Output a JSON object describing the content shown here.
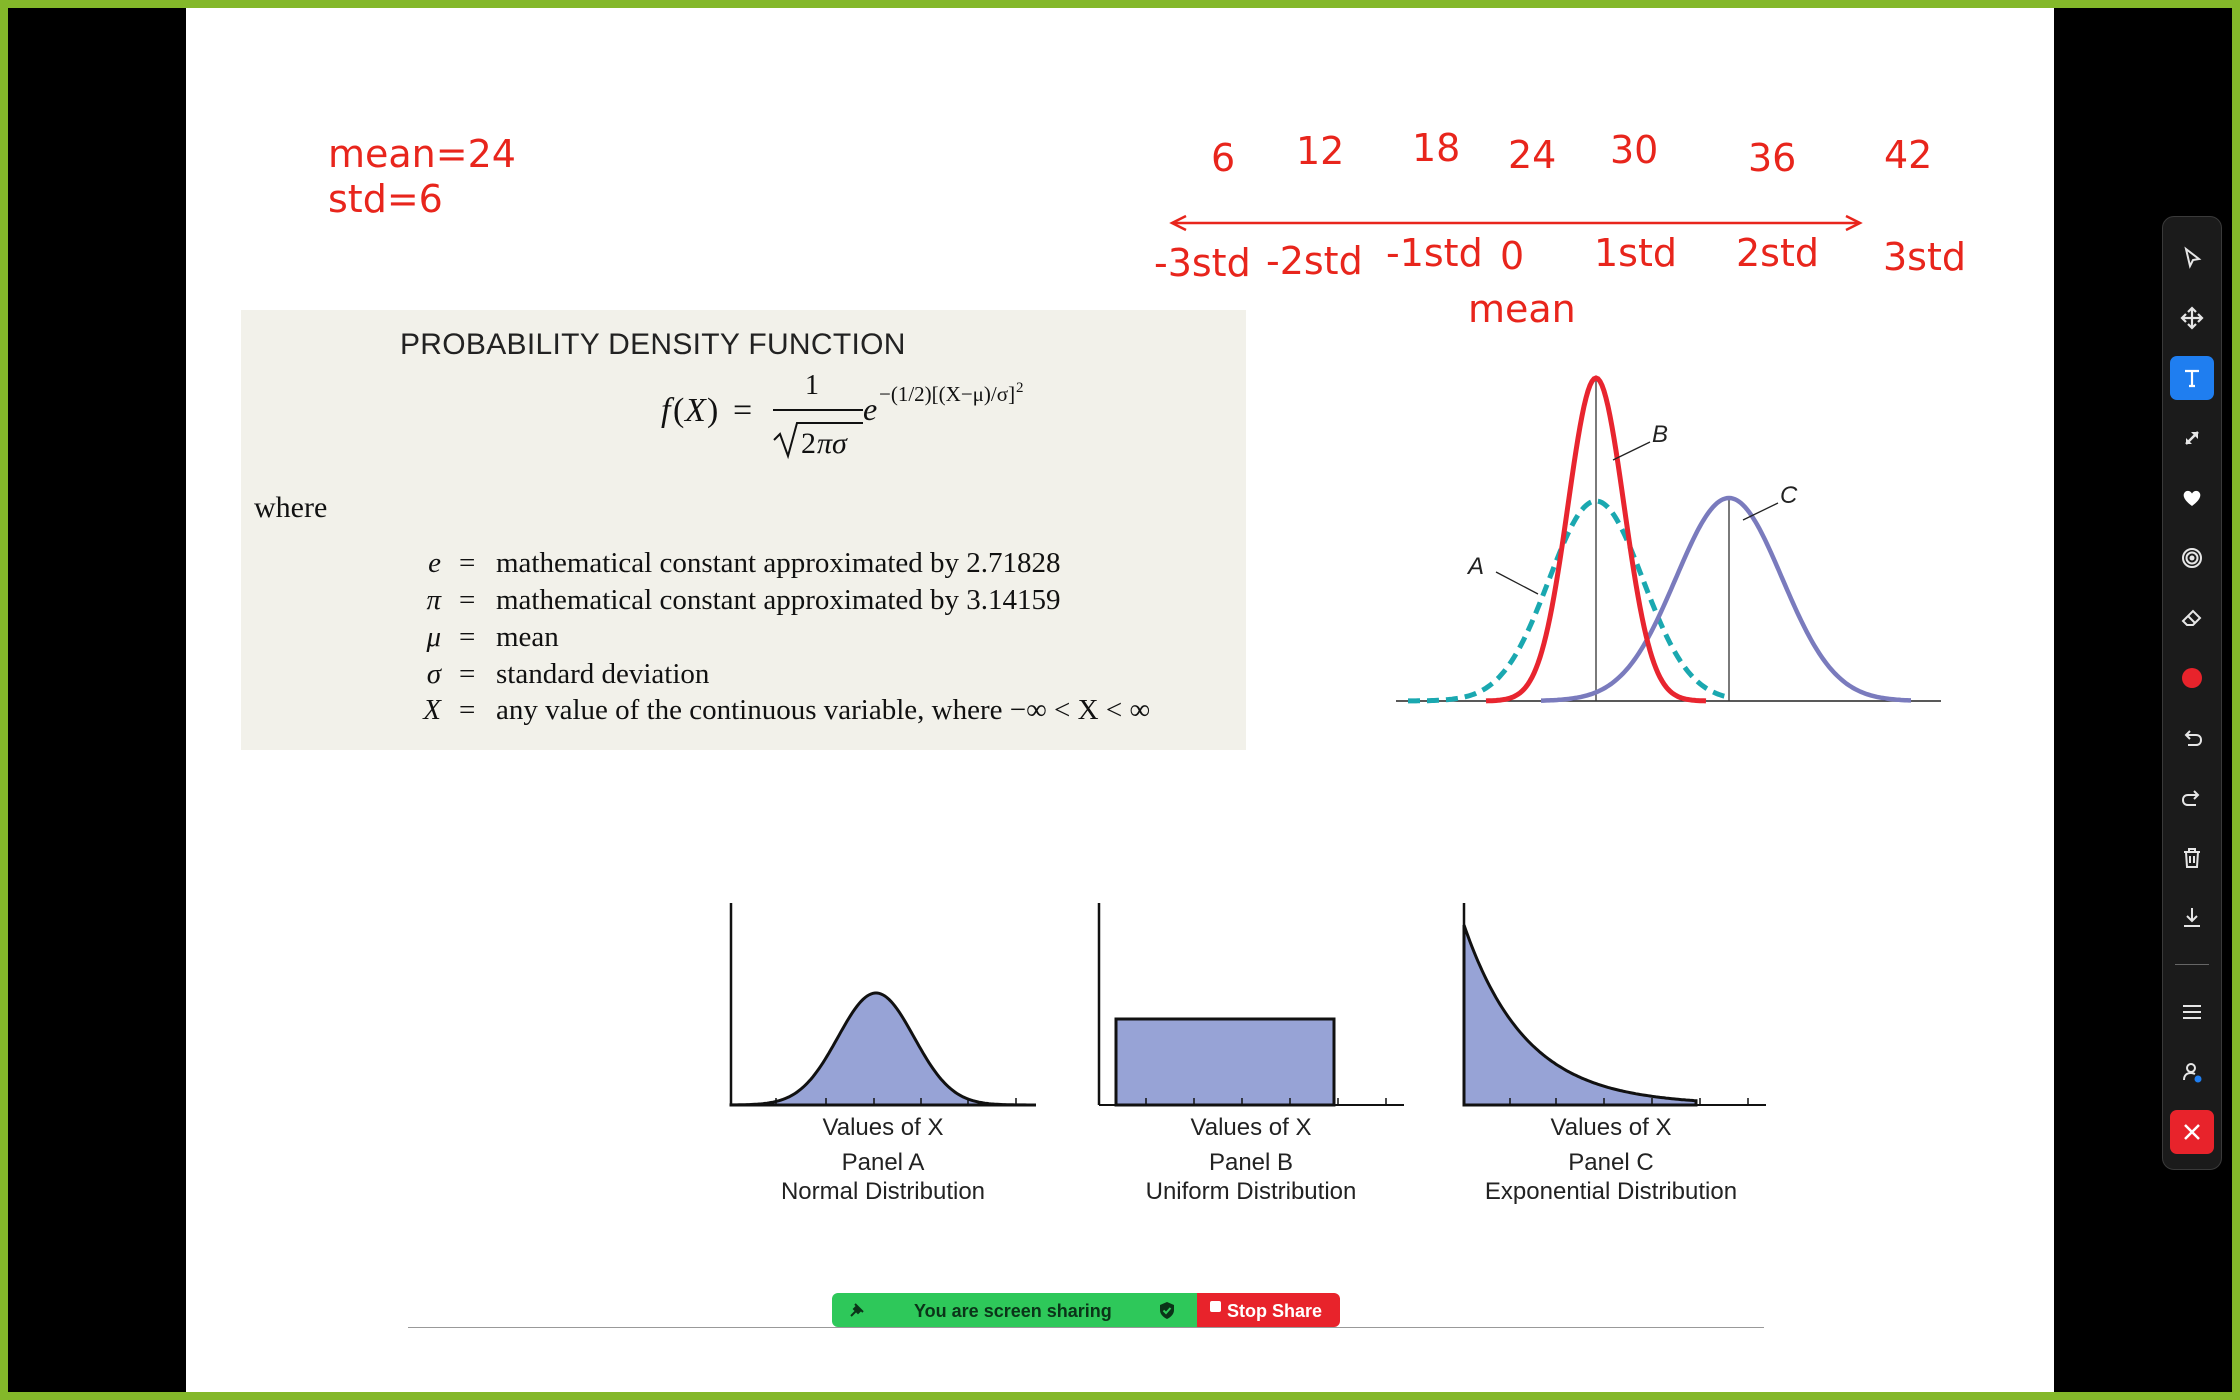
{
  "annotations": {
    "mean_label": "mean=24",
    "std_label": "std=6",
    "values": [
      "6",
      "12",
      "18",
      "24",
      "30",
      "36",
      "42"
    ],
    "std_labels": [
      "-3std",
      "-2std",
      "-1std",
      "0",
      "1std",
      "2std",
      "3std"
    ],
    "mean_word": "mean",
    "color": "#e8251c"
  },
  "pdf_box": {
    "title": "PROBABILITY DENSITY FUNCTION",
    "where": "where",
    "definitions": [
      {
        "symbol": "e",
        "text": "mathematical constant approximated by 2.71828"
      },
      {
        "symbol": "π",
        "text": "mathematical constant approximated by 3.14159"
      },
      {
        "symbol": "μ",
        "text": "mean"
      },
      {
        "symbol": "σ",
        "text": "standard deviation"
      },
      {
        "symbol": "X",
        "text": "any value of the continuous variable, where −∞ < X < ∞"
      }
    ],
    "equals": "="
  },
  "curves_figure": {
    "labels": [
      "A",
      "B",
      "C"
    ],
    "colors": {
      "A": "#1aa8b0",
      "B": "#e8252f",
      "C": "#7a7bbd"
    }
  },
  "panels": [
    {
      "axis": "Values of X",
      "panel": "Panel A",
      "name": "Normal Distribution"
    },
    {
      "axis": "Values of X",
      "panel": "Panel B",
      "name": "Uniform Distribution"
    },
    {
      "axis": "Values of X",
      "panel": "Panel C",
      "name": "Exponential Distribution"
    }
  ],
  "panel_fill": "#97a3d6",
  "share_bar": {
    "sharing_text": "You are screen sharing",
    "stop_label": "Stop Share",
    "green": "#2ec85a",
    "red": "#e8232b"
  },
  "toolbar": {
    "tools": [
      "select-icon",
      "move-icon",
      "text-icon",
      "arrow-icon",
      "heart-stamp-icon",
      "spotlight-icon",
      "eraser-icon",
      "red-color-dot-icon",
      "undo-icon",
      "redo-icon",
      "trash-icon",
      "download-icon",
      "menu-icon",
      "user-icon",
      "close-icon"
    ],
    "active_tool": "text-icon",
    "accent": "#1f7ef0"
  }
}
